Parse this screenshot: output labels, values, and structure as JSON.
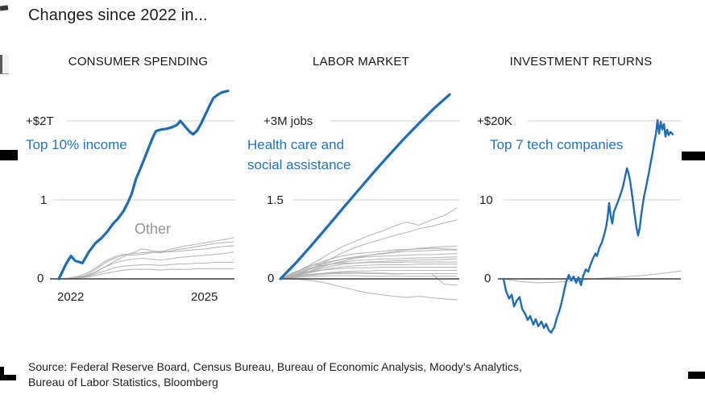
{
  "page": {
    "title": "Changes since 2022 in...",
    "source_line1": "Source: Federal Reserve Board, Census Bureau, Bureau of Economic Analysis, Moody's Analytics,",
    "source_line2": "Bureau of Labor Statistics, Bloomberg"
  },
  "colors": {
    "accent_blue": "#1e6cb5",
    "label_blue": "#2173c2",
    "gray_line": "#adadad",
    "grid": "#cfcfcf",
    "axis": "#3c3c3c",
    "text_dark": "#1a1a1a",
    "muted_gray": "#949494"
  },
  "chart_data": [
    {
      "type": "line",
      "title": "CONSUMER SPENDING",
      "top_tick_label": "+$2T",
      "mid_tick_label": "1",
      "zero_label": "0",
      "annotation_line1": "Top 10% income",
      "other_label": "Other",
      "x_tick_left": "2022",
      "x_tick_right": "2025",
      "ylim": [
        -0.1,
        2.5
      ],
      "grid": {
        "top_value": 2,
        "mid_value": 1
      },
      "series": [
        {
          "name": "Top 10% income",
          "role": "highlight",
          "points": [
            [
              0,
              0
            ],
            [
              0.043,
              0.19
            ],
            [
              0.072,
              0.29
            ],
            [
              0.096,
              0.23
            ],
            [
              0.139,
              0.2
            ],
            [
              0.177,
              0.34
            ],
            [
              0.215,
              0.45
            ],
            [
              0.254,
              0.52
            ],
            [
              0.287,
              0.6
            ],
            [
              0.321,
              0.7
            ],
            [
              0.349,
              0.76
            ],
            [
              0.383,
              0.86
            ],
            [
              0.407,
              0.96
            ],
            [
              0.431,
              1.08
            ],
            [
              0.455,
              1.26
            ],
            [
              0.483,
              1.4
            ],
            [
              0.507,
              1.53
            ],
            [
              0.531,
              1.66
            ],
            [
              0.555,
              1.79
            ],
            [
              0.574,
              1.87
            ],
            [
              0.603,
              1.89
            ],
            [
              0.636,
              1.9
            ],
            [
              0.67,
              1.92
            ],
            [
              0.699,
              1.95
            ],
            [
              0.718,
              2.0
            ],
            [
              0.746,
              1.93
            ],
            [
              0.77,
              1.87
            ],
            [
              0.794,
              1.83
            ],
            [
              0.818,
              1.88
            ],
            [
              0.842,
              1.97
            ],
            [
              0.866,
              2.08
            ],
            [
              0.89,
              2.19
            ],
            [
              0.914,
              2.29
            ],
            [
              0.938,
              2.33
            ],
            [
              0.962,
              2.36
            ],
            [
              1,
              2.38
            ]
          ]
        },
        {
          "name": "Other 1",
          "role": "context",
          "values": [
            0,
            0,
            0.01,
            0.03,
            0.08,
            0.15,
            0.22,
            0.28,
            0.33,
            0.38,
            0.36,
            0.34,
            0.37,
            0.4,
            0.42,
            0.44,
            0.46,
            0.48,
            0.5,
            0.52
          ]
        },
        {
          "name": "Other 2",
          "role": "context",
          "values": [
            0,
            0,
            0.02,
            0.05,
            0.12,
            0.2,
            0.26,
            0.3,
            0.32,
            0.33,
            0.34,
            0.33,
            0.35,
            0.37,
            0.39,
            0.41,
            0.43,
            0.45,
            0.46,
            0.47
          ]
        },
        {
          "name": "Other 3",
          "role": "context",
          "values": [
            0,
            0.01,
            0.03,
            0.07,
            0.14,
            0.22,
            0.28,
            0.31,
            0.3,
            0.31,
            0.33,
            0.35,
            0.34,
            0.35,
            0.36,
            0.37,
            0.38,
            0.4,
            0.41,
            0.42
          ]
        },
        {
          "name": "Other 4",
          "role": "context",
          "values": [
            0,
            0,
            0.01,
            0.04,
            0.09,
            0.15,
            0.2,
            0.23,
            0.25,
            0.26,
            0.25,
            0.24,
            0.25,
            0.27,
            0.28,
            0.29,
            0.3,
            0.31,
            0.32,
            0.34
          ]
        },
        {
          "name": "Other 5",
          "role": "context",
          "values": [
            0,
            0,
            0.01,
            0.03,
            0.06,
            0.1,
            0.14,
            0.16,
            0.17,
            0.18,
            0.18,
            0.17,
            0.18,
            0.19,
            0.19,
            0.2,
            0.2,
            0.21,
            0.21,
            0.21
          ]
        },
        {
          "name": "Other 6",
          "role": "context",
          "values": [
            0,
            0,
            0.01,
            0.02,
            0.04,
            0.07,
            0.09,
            0.11,
            0.12,
            0.12,
            0.12,
            0.11,
            0.12,
            0.12,
            0.12,
            0.13,
            0.13,
            0.13,
            0.13,
            0.13
          ]
        }
      ]
    },
    {
      "type": "line",
      "title": "LABOR MARKET",
      "top_tick_label": "+3M jobs",
      "mid_tick_label": "1.5",
      "zero_label": "0",
      "annotation_line1": "Health care and",
      "annotation_line2": "social assistance",
      "ylim": [
        -0.6,
        3.6
      ],
      "grid": {
        "top_value": 3,
        "mid_value": 1.5
      },
      "series": [
        {
          "name": "Health care and social assistance",
          "role": "highlight",
          "values": [
            0,
            0.3,
            0.63,
            0.97,
            1.32,
            1.66,
            2.0,
            2.33,
            2.65,
            2.95,
            3.24,
            3.5
          ]
        },
        {
          "name": "industry 1",
          "role": "context",
          "values": [
            0,
            0.1,
            0.22,
            0.35,
            0.5,
            0.62,
            0.72,
            0.82,
            0.9,
            1.0,
            1.08,
            1.02,
            1.12,
            1.2,
            1.35
          ]
        },
        {
          "name": "industry 2",
          "role": "context",
          "values": [
            0,
            0.06,
            0.14,
            0.26,
            0.38,
            0.5,
            0.6,
            0.68,
            0.75,
            0.82,
            0.88,
            0.95,
            1.0,
            1.06,
            1.12
          ]
        },
        {
          "name": "industry 3",
          "role": "context",
          "values": [
            0,
            0.05,
            0.12,
            0.2,
            0.28,
            0.34,
            0.4,
            0.45,
            0.48,
            0.52,
            0.55,
            0.58,
            0.6,
            0.61,
            0.62
          ]
        },
        {
          "name": "industry 4",
          "role": "context",
          "values": [
            0,
            0.1,
            0.22,
            0.3,
            0.38,
            0.44,
            0.48,
            0.5,
            0.52,
            0.55,
            0.56,
            0.57,
            0.58,
            0.57,
            0.56
          ]
        },
        {
          "name": "industry 5",
          "role": "context",
          "values": [
            0,
            0.06,
            0.15,
            0.25,
            0.32,
            0.38,
            0.42,
            0.45,
            0.47,
            0.5,
            0.52,
            0.53,
            0.54,
            0.55,
            0.55
          ]
        },
        {
          "name": "industry 6",
          "role": "context",
          "values": [
            0,
            0.12,
            0.2,
            0.28,
            0.33,
            0.38,
            0.4,
            0.42,
            0.43,
            0.44,
            0.45,
            0.46,
            0.46,
            0.47,
            0.48
          ]
        },
        {
          "name": "industry 7",
          "role": "context",
          "values": [
            0,
            0.08,
            0.16,
            0.22,
            0.28,
            0.32,
            0.35,
            0.36,
            0.38,
            0.38,
            0.39,
            0.4,
            0.4,
            0.41,
            0.42
          ]
        },
        {
          "name": "industry 8",
          "role": "context",
          "values": [
            0,
            0.05,
            0.12,
            0.18,
            0.24,
            0.28,
            0.3,
            0.32,
            0.33,
            0.34,
            0.35,
            0.36,
            0.36,
            0.37,
            0.38
          ]
        },
        {
          "name": "industry 9",
          "role": "context",
          "values": [
            0,
            0.1,
            0.18,
            0.24,
            0.28,
            0.3,
            0.3,
            0.31,
            0.31,
            0.31,
            0.32,
            0.32,
            0.32,
            0.32,
            0.32
          ]
        },
        {
          "name": "industry 10",
          "role": "context",
          "values": [
            0,
            0.04,
            0.1,
            0.15,
            0.2,
            0.23,
            0.25,
            0.26,
            0.27,
            0.27,
            0.27,
            0.28,
            0.28,
            0.28,
            0.28
          ]
        },
        {
          "name": "industry 11",
          "role": "context",
          "values": [
            0,
            0.06,
            0.12,
            0.16,
            0.18,
            0.2,
            0.21,
            0.21,
            0.22,
            0.22,
            0.22,
            0.22,
            0.22,
            0.22,
            0.22
          ]
        },
        {
          "name": "industry 12",
          "role": "context",
          "values": [
            0,
            0.03,
            0.07,
            0.1,
            0.12,
            0.14,
            0.15,
            0.15,
            0.16,
            0.16,
            0.16,
            0.16,
            0.16,
            0.16,
            0.16
          ]
        },
        {
          "name": "industry 13",
          "role": "context",
          "values": [
            0,
            0.05,
            0.08,
            0.1,
            0.11,
            0.12,
            0.12,
            0.11,
            0.11,
            0.1,
            0.1,
            0.1,
            0.1,
            0.1,
            0.1
          ]
        },
        {
          "name": "industry 14",
          "role": "context",
          "values": [
            0,
            0.02,
            0.04,
            0.05,
            0.06,
            0.06,
            0.06,
            0.05,
            0.05,
            0.05,
            0.05,
            0.05,
            0.05,
            0.05,
            0.05
          ]
        },
        {
          "name": "industry 15",
          "role": "context",
          "values": [
            0,
            0.03,
            0.06,
            0.08,
            0.1,
            0.1,
            0.11,
            0.1,
            0.1,
            0.09,
            0.1,
            0.1,
            0.1,
            -0.1,
            -0.12
          ]
        },
        {
          "name": "industry 16",
          "role": "context",
          "values": [
            0,
            0,
            -0.02,
            -0.05,
            -0.1,
            -0.16,
            -0.22,
            -0.27,
            -0.3,
            -0.33,
            -0.35,
            -0.33,
            -0.36,
            -0.38,
            -0.4
          ]
        }
      ]
    },
    {
      "type": "line",
      "title": "INVESTMENT RETURNS",
      "top_tick_label": "+$20K",
      "mid_tick_label": "10",
      "zero_label": "0",
      "annotation_line1": "Top 7 tech companies",
      "ylim": [
        -7.5,
        20.5
      ],
      "grid": {
        "top_value": 20,
        "mid_value": 10
      },
      "series": [
        {
          "name": "Top 7 tech companies",
          "role": "highlight",
          "points": [
            [
              0,
              0
            ],
            [
              0.014,
              -1.5
            ],
            [
              0.033,
              -2.5
            ],
            [
              0.048,
              -2.0
            ],
            [
              0.062,
              -3.5
            ],
            [
              0.076,
              -2.8
            ],
            [
              0.095,
              -2.3
            ],
            [
              0.11,
              -3.8
            ],
            [
              0.129,
              -4.5
            ],
            [
              0.143,
              -5.2
            ],
            [
              0.157,
              -4.7
            ],
            [
              0.176,
              -5.8
            ],
            [
              0.19,
              -5.1
            ],
            [
              0.205,
              -6.0
            ],
            [
              0.224,
              -5.4
            ],
            [
              0.238,
              -6.2
            ],
            [
              0.252,
              -5.7
            ],
            [
              0.267,
              -6.5
            ],
            [
              0.281,
              -6.8
            ],
            [
              0.3,
              -6.1
            ],
            [
              0.314,
              -5.0
            ],
            [
              0.329,
              -4.1
            ],
            [
              0.343,
              -3.0
            ],
            [
              0.357,
              -1.6
            ],
            [
              0.371,
              -0.3
            ],
            [
              0.386,
              0.5
            ],
            [
              0.4,
              -0.2
            ],
            [
              0.414,
              0.3
            ],
            [
              0.429,
              -0.5
            ],
            [
              0.443,
              0.2
            ],
            [
              0.457,
              -0.8
            ],
            [
              0.471,
              0.4
            ],
            [
              0.486,
              1.2
            ],
            [
              0.5,
              0.9
            ],
            [
              0.514,
              1.8
            ],
            [
              0.529,
              2.6
            ],
            [
              0.543,
              3.2
            ],
            [
              0.552,
              2.9
            ],
            [
              0.567,
              4.0
            ],
            [
              0.581,
              4.6
            ],
            [
              0.595,
              5.6
            ],
            [
              0.605,
              6.5
            ],
            [
              0.614,
              7.6
            ],
            [
              0.624,
              9.6
            ],
            [
              0.633,
              8.0
            ],
            [
              0.643,
              7.0
            ],
            [
              0.652,
              8.5
            ],
            [
              0.662,
              9.0
            ],
            [
              0.676,
              9.8
            ],
            [
              0.69,
              10.6
            ],
            [
              0.705,
              11.6
            ],
            [
              0.719,
              13.0
            ],
            [
              0.729,
              14.0
            ],
            [
              0.738,
              13.4
            ],
            [
              0.748,
              12.4
            ],
            [
              0.757,
              11.0
            ],
            [
              0.767,
              9.4
            ],
            [
              0.776,
              7.9
            ],
            [
              0.786,
              6.4
            ],
            [
              0.795,
              5.5
            ],
            [
              0.805,
              6.6
            ],
            [
              0.814,
              8.1
            ],
            [
              0.824,
              9.6
            ],
            [
              0.833,
              10.7
            ],
            [
              0.843,
              11.7
            ],
            [
              0.852,
              12.7
            ],
            [
              0.862,
              13.8
            ],
            [
              0.871,
              14.9
            ],
            [
              0.881,
              16.0
            ],
            [
              0.89,
              17.2
            ],
            [
              0.9,
              18.3
            ],
            [
              0.905,
              19.2
            ],
            [
              0.91,
              20.1
            ],
            [
              0.919,
              18.4
            ],
            [
              0.929,
              19.9
            ],
            [
              0.938,
              18.9
            ],
            [
              0.948,
              19.6
            ],
            [
              0.957,
              18.0
            ],
            [
              0.967,
              18.9
            ],
            [
              0.976,
              18.2
            ],
            [
              0.986,
              18.6
            ],
            [
              1,
              18.3
            ]
          ]
        },
        {
          "name": "other investments",
          "role": "context",
          "values": [
            0,
            -0.35,
            -0.5,
            -0.42,
            -0.25,
            0,
            0.15,
            0.3,
            0.45,
            0.7,
            1.0
          ]
        }
      ]
    }
  ]
}
